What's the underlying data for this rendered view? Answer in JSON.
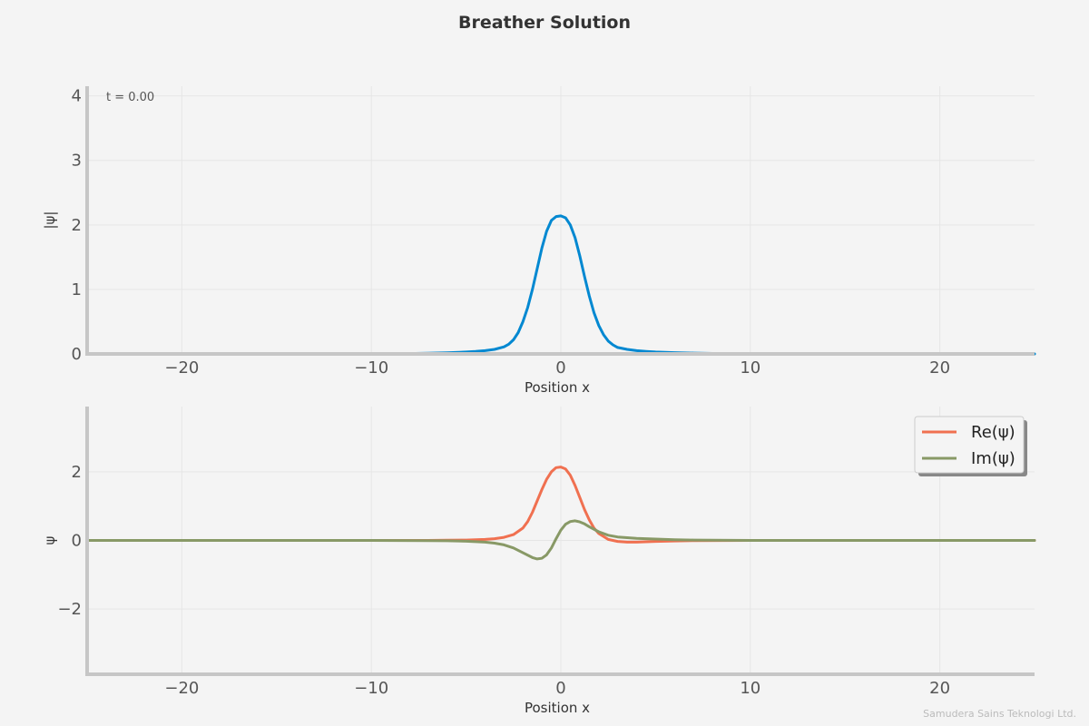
{
  "figure": {
    "title": "Breather Solution",
    "watermark": "Samudera Sains Teknologi Ltd.",
    "background": "#f4f4f4"
  },
  "chart_data": [
    {
      "type": "line",
      "title": "",
      "xlabel": "Position x",
      "ylabel": "|ψ|",
      "xlim": [
        -25,
        25
      ],
      "ylim": [
        0,
        4.15
      ],
      "xticks": [
        -20,
        -10,
        0,
        10,
        20
      ],
      "yticks": [
        0,
        1,
        2,
        3,
        4
      ],
      "time_label": "t = 0.00",
      "grid": true,
      "series": [
        {
          "color": "#0288d1",
          "x": [
            -25,
            -15,
            -10,
            -8,
            -7,
            -6,
            -5,
            -4.5,
            -4,
            -3.5,
            -3,
            -2.75,
            -2.5,
            -2.25,
            -2,
            -1.75,
            -1.5,
            -1.25,
            -1,
            -0.75,
            -0.5,
            -0.25,
            0,
            0.25,
            0.5,
            0.75,
            1,
            1.25,
            1.5,
            1.75,
            2,
            2.25,
            2.5,
            2.75,
            3,
            3.5,
            4,
            4.5,
            5,
            6,
            7,
            8,
            10,
            15,
            25
          ],
          "y": [
            0,
            0,
            0.002,
            0.006,
            0.01,
            0.018,
            0.03,
            0.038,
            0.05,
            0.07,
            0.11,
            0.15,
            0.22,
            0.33,
            0.5,
            0.72,
            1.0,
            1.32,
            1.64,
            1.9,
            2.07,
            2.13,
            2.14,
            2.11,
            2.0,
            1.8,
            1.52,
            1.2,
            0.9,
            0.64,
            0.44,
            0.3,
            0.2,
            0.14,
            0.1,
            0.07,
            0.05,
            0.04,
            0.03,
            0.02,
            0.012,
            0.007,
            0.002,
            0,
            0
          ]
        }
      ]
    },
    {
      "type": "line",
      "title": "",
      "xlabel": "Position x",
      "ylabel": "ψ",
      "xlim": [
        -25,
        25
      ],
      "ylim": [
        -3.9,
        3.9
      ],
      "xticks": [
        -20,
        -10,
        0,
        10,
        20
      ],
      "yticks": [
        -2,
        0,
        2
      ],
      "grid": true,
      "legend": "top-right",
      "series": [
        {
          "name": "Re(ψ)",
          "color": "#f07050",
          "x": [
            -25,
            -15,
            -10,
            -7,
            -6,
            -5,
            -4,
            -3.5,
            -3,
            -2.5,
            -2,
            -1.75,
            -1.5,
            -1.25,
            -1,
            -0.75,
            -0.5,
            -0.25,
            0,
            0.25,
            0.5,
            0.75,
            1,
            1.25,
            1.5,
            1.75,
            2,
            2.5,
            3,
            3.5,
            4,
            5,
            6,
            7,
            10,
            15,
            25
          ],
          "y": [
            0,
            0,
            0,
            0,
            0.005,
            0.01,
            0.03,
            0.05,
            0.09,
            0.17,
            0.36,
            0.55,
            0.82,
            1.15,
            1.48,
            1.78,
            2.0,
            2.12,
            2.14,
            2.08,
            1.9,
            1.6,
            1.25,
            0.9,
            0.6,
            0.36,
            0.2,
            0.03,
            -0.03,
            -0.05,
            -0.05,
            -0.03,
            -0.015,
            -0.005,
            0,
            0,
            0
          ]
        },
        {
          "name": "Im(ψ)",
          "color": "#889966",
          "x": [
            -25,
            -15,
            -10,
            -7,
            -6,
            -5,
            -4,
            -3.5,
            -3,
            -2.5,
            -2,
            -1.5,
            -1.25,
            -1,
            -0.75,
            -0.5,
            -0.25,
            0,
            0.25,
            0.5,
            0.75,
            1,
            1.25,
            1.5,
            2,
            2.5,
            3,
            3.5,
            4,
            5,
            6,
            7,
            10,
            15,
            25
          ],
          "y": [
            0,
            0,
            0,
            -0.005,
            -0.01,
            -0.025,
            -0.05,
            -0.08,
            -0.13,
            -0.22,
            -0.36,
            -0.5,
            -0.54,
            -0.52,
            -0.42,
            -0.22,
            0.05,
            0.3,
            0.47,
            0.55,
            0.57,
            0.54,
            0.48,
            0.4,
            0.25,
            0.15,
            0.1,
            0.08,
            0.06,
            0.04,
            0.02,
            0.01,
            0,
            0,
            0
          ]
        }
      ]
    }
  ]
}
